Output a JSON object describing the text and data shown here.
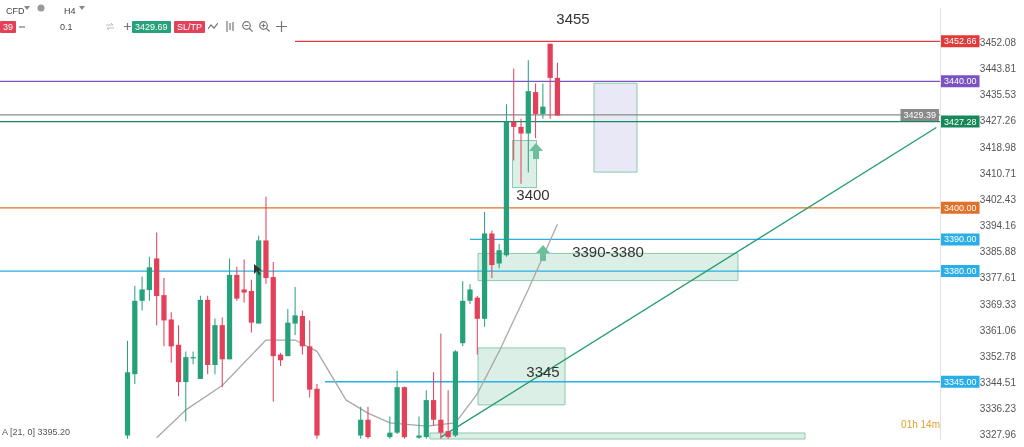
{
  "chart_data": {
    "type": "candlestick",
    "categories": [
      null,
      null,
      null,
      null,
      null,
      null,
      null,
      null,
      null,
      null,
      null,
      null,
      null,
      null,
      null,
      null,
      null,
      null,
      null,
      null,
      null,
      null,
      null,
      null,
      null,
      null,
      null,
      null,
      null,
      null,
      null,
      null,
      null,
      null,
      null,
      null,
      null,
      null,
      null,
      null,
      null,
      null,
      null,
      null,
      null,
      null,
      null,
      null,
      null,
      null,
      null,
      null,
      null,
      null,
      null,
      null,
      null,
      null,
      null,
      null,
      null,
      null,
      null,
      null,
      null,
      null,
      null,
      null,
      null,
      null,
      null,
      null,
      null,
      null,
      null,
      null,
      null,
      null,
      null,
      null,
      null,
      null,
      null,
      null,
      null,
      null,
      null,
      null,
      null,
      null,
      null,
      null,
      null,
      null,
      null,
      null,
      null,
      null,
      null,
      null,
      null,
      null,
      null,
      null,
      null,
      null,
      null,
      null,
      null,
      null,
      null,
      null,
      null,
      null,
      null,
      null,
      null,
      null,
      null,
      null,
      null,
      null,
      null,
      null,
      null,
      null,
      null,
      null,
      null
    ],
    "ohlc": [
      null,
      null,
      null,
      null,
      null,
      null,
      null,
      null,
      null,
      null,
      null,
      null,
      null,
      null,
      null,
      null,
      null,
      [
        3328,
        3358,
        3327,
        3348
      ],
      [
        3347.4,
        3375.4,
        3344.3,
        3370.6
      ],
      [
        3370.6,
        3378.3,
        3367.5,
        3374.2
      ],
      [
        3374,
        3384.5,
        3370.6,
        3381.2
      ],
      [
        3384,
        3392.2,
        3362.9,
        3372.1
      ],
      [
        3372.4,
        3377.8,
        3356.2,
        3364.4
      ],
      [
        3364.7,
        3367,
        3351,
        3356.2
      ],
      [
        3356.7,
        3362.9,
        3340.4,
        3344.9
      ],
      [
        3344.9,
        3354.6,
        3332.5,
        3352.8
      ],
      [
        3352.4,
        3354.6,
        3350.5,
        3352.8
      ],
      [
        3345.9,
        3372.2,
        3345.9,
        3370.9
      ],
      [
        3370.9,
        3372.2,
        3347.4,
        3350.3
      ],
      [
        3350.3,
        3365,
        3347.4,
        3362.9
      ],
      [
        3362.9,
        3365.4,
        3343.3,
        3352.1
      ],
      [
        3352.1,
        3384,
        3352.1,
        3378.8
      ],
      [
        3378.8,
        3381.4,
        3370.6,
        3371.3
      ],
      [
        3374.2,
        3383.7,
        3370.1,
        3373.2
      ],
      [
        3373.7,
        3377.3,
        3360.6,
        3363.7
      ],
      [
        3363.4,
        3391.2,
        3363.4,
        3389.7
      ],
      [
        3389.7,
        3403.6,
        3376,
        3377.8
      ],
      [
        3378.1,
        3382.9,
        3338.7,
        3353.1
      ],
      [
        3353.6,
        3354.1,
        3350,
        3351.8
      ],
      [
        3353.1,
        3368,
        3353.1,
        3363.7
      ],
      [
        3363.4,
        3375,
        3359.8,
        3366
      ],
      [
        3365.8,
        3367.5,
        3353.6,
        3356.2
      ],
      [
        3356.2,
        3364.4,
        3340,
        3342.5
      ],
      [
        3342.8,
        3344.3,
        3327,
        3328
      ],
      null,
      null,
      null,
      null,
      null,
      [
        3328,
        3337.1,
        3327,
        3333
      ],
      [
        3333,
        3337.1,
        3327,
        3327.5
      ],
      null,
      null,
      [
        3327.5,
        3334,
        3327,
        3328.9
      ],
      [
        3328.9,
        3348.5,
        3328.5,
        3343.3
      ],
      [
        3343.3,
        3343.5,
        3327,
        3327.5
      ],
      null,
      [
        3327.3,
        3334,
        3327,
        3328
      ],
      [
        3327.5,
        3342.3,
        3327,
        3339.2
      ],
      [
        3339.2,
        3348,
        3331,
        3333
      ],
      [
        3333,
        3360.3,
        3327,
        3328.9
      ],
      [
        3329.4,
        3342.3,
        3327,
        3327.5
      ],
      [
        3328,
        3355,
        3327.5,
        3354.6
      ],
      [
        3357.2,
        3376.8,
        3356.2,
        3370.6
      ],
      [
        3370.6,
        3375.8,
        3369.6,
        3374.2
      ],
      [
        3371.6,
        3372.1,
        3353.6,
        3364.9
      ],
      [
        3364.9,
        3398.7,
        3362.4,
        3391.9
      ],
      [
        3391.9,
        3392.8,
        3377.8,
        3381.9
      ],
      [
        3382.4,
        3388.6,
        3380.9,
        3386.6
      ],
      [
        3385,
        3432.8,
        3384.5,
        3427.2
      ],
      [
        3427.2,
        3444.1,
        3415,
        3425.6
      ],
      [
        3425.6,
        3428.2,
        3407.6,
        3423.5
      ],
      [
        3423.5,
        3446.7,
        3411.2,
        3436.9
      ],
      [
        3436.6,
        3439.3,
        3422,
        3429.7
      ],
      [
        3429.7,
        3439.3,
        3428.2,
        3432
      ],
      [
        3451.9,
        3451.9,
        3428.2,
        3441.1
      ],
      [
        3441.1,
        3445.9,
        3429.2,
        3429.2
      ],
      null,
      null,
      null,
      null,
      null,
      null,
      null,
      null,
      null,
      null,
      null,
      null,
      null,
      null,
      null,
      null,
      null,
      null,
      null,
      null,
      null,
      null,
      null,
      null,
      null,
      null,
      null,
      null,
      null,
      null,
      null,
      null,
      null,
      null,
      null,
      null,
      null,
      null,
      null,
      null,
      null,
      null,
      null,
      null,
      null,
      null,
      null,
      null,
      null,
      null,
      null,
      null
    ],
    "colors": [
      null,
      null,
      null,
      null,
      null,
      null,
      null,
      null,
      null,
      null,
      null,
      null,
      null,
      null,
      null,
      null,
      null,
      "#26a17b",
      "#26a17b",
      "#26a17b",
      "#26a17b",
      "#e3405a",
      "#e3405a",
      "#e3405a",
      "#e3405a",
      "#26a17b",
      "#26a17b",
      "#26a17b",
      "#e3405a",
      "#26a17b",
      "#e3405a",
      "#26a17b",
      "#e3405a",
      "#e3405a",
      "#e3405a",
      "#26a17b",
      "#e3405a",
      "#e3405a",
      "#e3405a",
      "#26a17b",
      "#26a17b",
      "#e3405a",
      "#e3405a",
      "#e3405a",
      null,
      null,
      null,
      null,
      null,
      "#26a17b",
      "#e3405a",
      null,
      null,
      "#26a17b",
      "#26a17b",
      "#e3405a",
      null,
      "#26a17b",
      "#26a17b",
      "#e3405a",
      "#e3405a",
      "#e3405a",
      "#26a17b",
      "#26a17b",
      "#26a17b",
      "#e3405a",
      "#26a17b",
      "#e3405a",
      "#26a17b",
      "#26a17b",
      "#e3405a",
      "#e3405a",
      "#26a17b",
      "#e3405a",
      "#26a17b",
      "#e3405a",
      "#e3405a",
      null,
      null,
      null,
      null,
      null,
      null,
      null,
      null,
      null,
      null,
      null,
      null,
      null,
      null,
      null,
      null,
      null,
      null,
      null,
      null,
      null,
      null,
      null,
      null,
      null,
      null,
      null,
      null,
      null,
      null,
      null,
      null,
      null,
      null,
      null,
      null,
      null,
      null,
      null,
      null,
      null,
      null,
      null,
      null,
      null,
      null,
      null,
      null,
      null,
      null,
      null,
      null
    ],
    "series": [
      {
        "type": "line",
        "color": "#a8a8a8",
        "values": [
          null,
          null,
          null,
          null,
          null,
          null,
          null,
          null,
          null,
          null,
          null,
          null,
          null,
          null,
          null,
          null,
          null,
          null,
          null,
          null,
          null,
          3327.3,
          null,
          null,
          null,
          3336.1,
          null,
          null,
          null,
          null,
          3343.8,
          null,
          null,
          null,
          null,
          null,
          3358.2,
          null,
          null,
          null,
          3358.2,
          null,
          null,
          3354.6,
          null,
          null,
          null,
          3339.2,
          null,
          null,
          3335.1,
          null,
          null,
          3332,
          null,
          null,
          null,
          null,
          3331,
          null,
          null,
          null,
          3332,
          null,
          null,
          3341.2,
          null,
          null,
          3354.6,
          null,
          null,
          null,
          3374.2,
          null,
          null,
          null,
          3394.8,
          null,
          null,
          null,
          null,
          null,
          null,
          null,
          null,
          null,
          null,
          null,
          null,
          null,
          null,
          null,
          null,
          null,
          null,
          null,
          null,
          null,
          null,
          null,
          null,
          null,
          null,
          null,
          null,
          null,
          null,
          null,
          null,
          null,
          null,
          null,
          null,
          null,
          null,
          null,
          null,
          null,
          null,
          null,
          null,
          null,
          null,
          null,
          null,
          null,
          null,
          null,
          null
        ]
      },
      {
        "type": "line",
        "color": "#1f9a6a",
        "values": [
          null,
          null,
          null,
          null,
          null,
          null,
          null,
          null,
          null,
          null,
          null,
          null,
          null,
          null,
          null,
          null,
          null,
          null,
          null,
          null,
          null,
          null,
          null,
          null,
          null,
          null,
          null,
          null,
          null,
          null,
          null,
          null,
          null,
          null,
          null,
          null,
          null,
          null,
          null,
          null,
          null,
          null,
          null,
          null,
          null,
          null,
          null,
          null,
          null,
          null,
          null,
          null,
          null,
          null,
          null,
          null,
          null,
          null,
          null,
          null,
          3327.5,
          null,
          null,
          null,
          null,
          null,
          null,
          null,
          null,
          null,
          null,
          null,
          null,
          null,
          null,
          null,
          null,
          null,
          null,
          null,
          null,
          null,
          null,
          null,
          null,
          null,
          null,
          null,
          null,
          null,
          null,
          null,
          null,
          null,
          null,
          null,
          null,
          null,
          null,
          null,
          null,
          null,
          null,
          null,
          null,
          null,
          null,
          null,
          null,
          null,
          null,
          null,
          null,
          null,
          null,
          null,
          null,
          null,
          null,
          null,
          null,
          null,
          null,
          null,
          null,
          null,
          null,
          null,
          3425.4
        ]
      }
    ],
    "ylim": [
      3326.9,
      3463.2
    ],
    "yticks": [
      3452.08,
      3443.81,
      3435.53,
      3427.26,
      3418.98,
      3410.71,
      3402.43,
      3394.16,
      3385.88,
      3377.61,
      3369.33,
      3361.06,
      3352.78,
      3344.51,
      3336.23,
      3327.96
    ],
    "tick_labels": "y",
    "ref_lines": [
      {
        "axis": "y",
        "value": 3452.66,
        "label": "3452.66",
        "color": "#e03a3a"
      },
      {
        "axis": "y",
        "value": 3440,
        "label": "3440.00",
        "color": "#7b52c4"
      },
      {
        "axis": "y",
        "value": 3429.39,
        "label": "3429.39",
        "color": "#8a8a8a"
      },
      {
        "axis": "y",
        "value": 3427.28,
        "label": "3427.28",
        "color": "#17885a"
      },
      {
        "axis": "y",
        "value": 3400,
        "label": "3400.00",
        "color": "#e0702a"
      },
      {
        "axis": "y",
        "value": 3390,
        "label": "3390.00",
        "color": "#29aee6"
      },
      {
        "axis": "y",
        "value": 3380,
        "label": "3380.00",
        "color": "#29aee6"
      },
      {
        "axis": "y",
        "value": 3345,
        "label": "3345.00",
        "color": "#29aee6"
      }
    ],
    "bands": [
      {
        "axis": "y",
        "from": 3377,
        "to": 3385.6,
        "label": "3390-3380",
        "color": "#dcefe6"
      },
      {
        "axis": "y",
        "from": 3337.7,
        "to": 3355.7,
        "label": "3345",
        "color": "#dcefe6"
      },
      {
        "axis": "y",
        "from": 3326.9,
        "to": 3328.8,
        "label": null,
        "color": "#dcefe6"
      },
      {
        "axis": "y",
        "from": 3411.3,
        "to": 3439.4,
        "label": null,
        "color": "#e8e8f6"
      }
    ],
    "annotations": [
      "3455",
      "3400",
      "A [21, 0] 3395.20",
      "01h 14m",
      "CFD",
      "H4",
      "39",
      "0.1",
      "3429.69",
      "SL/TP"
    ]
  }
}
